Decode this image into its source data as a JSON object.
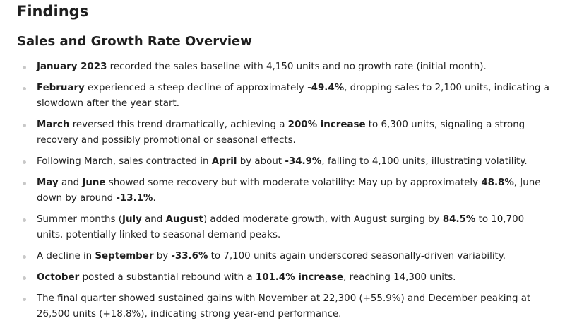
{
  "title": "Findings",
  "subtitle": "Sales and Growth Rate Overview",
  "bullets": [
    [
      {
        "t": "January 2023",
        "b": true
      },
      {
        "t": " recorded the sales baseline with 4,150 units and no growth rate (initial month).",
        "b": false
      }
    ],
    [
      {
        "t": "February",
        "b": true
      },
      {
        "t": " experienced a steep decline of approximately ",
        "b": false
      },
      {
        "t": "-49.4%",
        "b": true
      },
      {
        "t": ", dropping sales to 2,100 units, indicating a slowdown after the year start.",
        "b": false
      }
    ],
    [
      {
        "t": "March",
        "b": true
      },
      {
        "t": " reversed this trend dramatically, achieving a ",
        "b": false
      },
      {
        "t": "200% increase",
        "b": true
      },
      {
        "t": " to 6,300 units, signaling a strong recovery and possibly promotional or seasonal effects.",
        "b": false
      }
    ],
    [
      {
        "t": "Following March, sales contracted in ",
        "b": false
      },
      {
        "t": "April",
        "b": true
      },
      {
        "t": " by about ",
        "b": false
      },
      {
        "t": "-34.9%",
        "b": true
      },
      {
        "t": ", falling to 4,100 units, illustrating volatility.",
        "b": false
      }
    ],
    [
      {
        "t": "May",
        "b": true
      },
      {
        "t": " and ",
        "b": false
      },
      {
        "t": "June",
        "b": true
      },
      {
        "t": " showed some recovery but with moderate volatility: May up by approximately ",
        "b": false
      },
      {
        "t": "48.8%",
        "b": true
      },
      {
        "t": ", June down by around ",
        "b": false
      },
      {
        "t": "-13.1%",
        "b": true
      },
      {
        "t": ".",
        "b": false
      }
    ],
    [
      {
        "t": "Summer months (",
        "b": false
      },
      {
        "t": "July",
        "b": true
      },
      {
        "t": " and ",
        "b": false
      },
      {
        "t": "August",
        "b": true
      },
      {
        "t": ") added moderate growth, with August surging by ",
        "b": false
      },
      {
        "t": "84.5%",
        "b": true
      },
      {
        "t": " to 10,700 units, potentially linked to seasonal demand peaks.",
        "b": false
      }
    ],
    [
      {
        "t": "A decline in ",
        "b": false
      },
      {
        "t": "September",
        "b": true
      },
      {
        "t": " by ",
        "b": false
      },
      {
        "t": "-33.6%",
        "b": true
      },
      {
        "t": " to 7,100 units again underscored seasonally-driven variability.",
        "b": false
      }
    ],
    [
      {
        "t": "October",
        "b": true
      },
      {
        "t": " posted a substantial rebound with a ",
        "b": false
      },
      {
        "t": "101.4% increase",
        "b": true
      },
      {
        "t": ", reaching 14,300 units.",
        "b": false
      }
    ],
    [
      {
        "t": "The final quarter showed sustained gains with November at 22,300 (+55.9%) and December peaking at 26,500 units (+18.8%), indicating strong year-end performance.",
        "b": false
      }
    ]
  ]
}
